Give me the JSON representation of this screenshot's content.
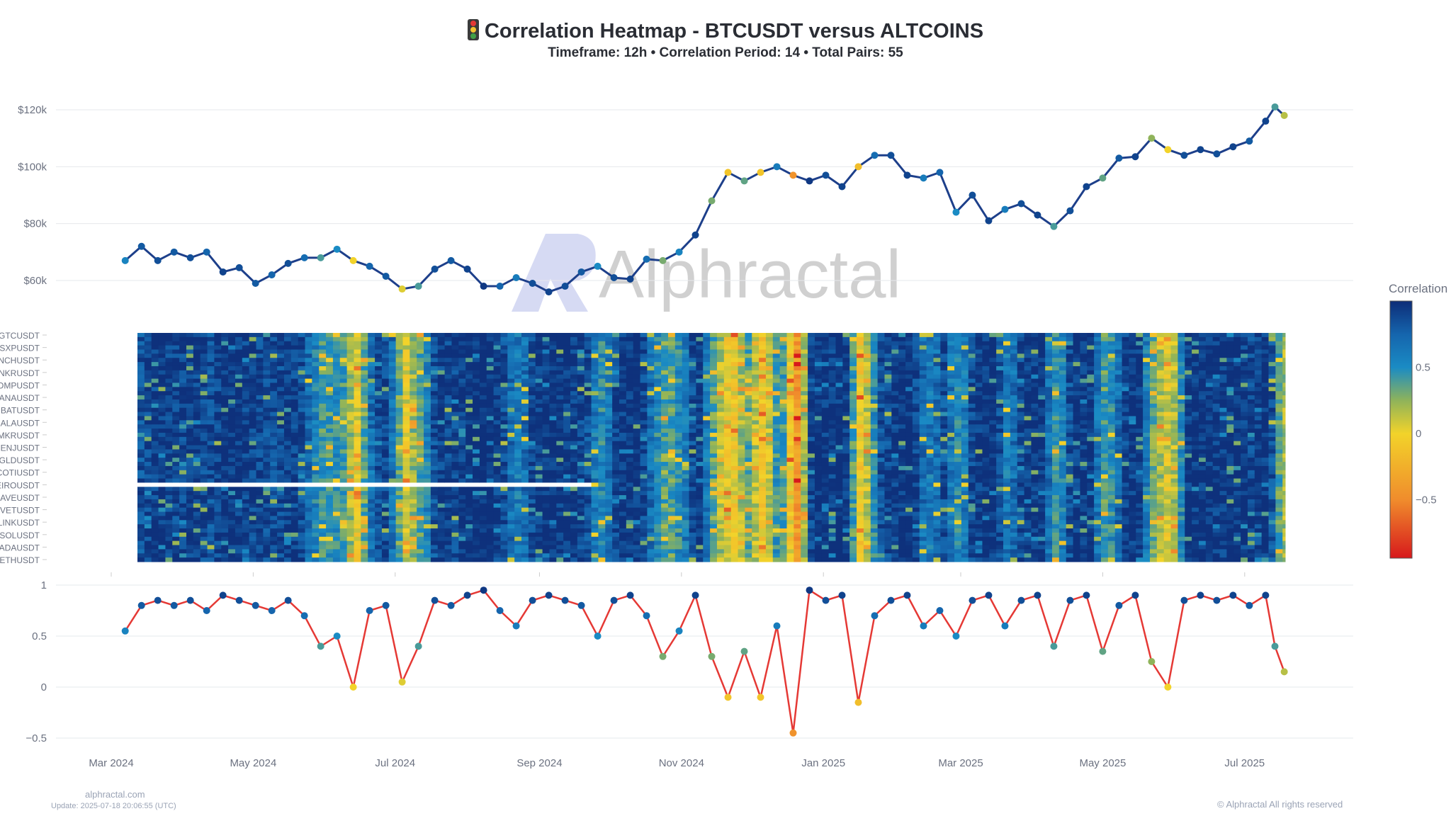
{
  "header": {
    "title": "Correlation Heatmap - BTCUSDT versus ALTCOINS",
    "title_icon": "traffic-light-icon",
    "subtitle": "Timeframe: 12h • Correlation Period: 14  • Total Pairs: 55"
  },
  "watermark": "Alphractal",
  "footer": {
    "site": "alphractal.com",
    "update": "Update: 2025-07-18 20:06:55 (UTC)",
    "copyright": "© Alphractal All rights reserved"
  },
  "chart_data": [
    {
      "type": "line",
      "ylabel": "",
      "yticks": [
        "$60k",
        "$80k",
        "$100k",
        "$120k"
      ],
      "ytick_values": [
        60000,
        80000,
        100000,
        120000
      ],
      "marker_color": "correlation",
      "grid": true
    },
    {
      "type": "heatmap",
      "row_labels": [
        "GTCUSDT",
        "SXPUSDT",
        "INCHUSDT",
        "ANKRUSDT",
        "COMPUSDT",
        "MANAUSDT",
        "BATUSDT",
        "GALAUSDT",
        "MKRUSDT",
        "ENJUSDT",
        "EGLDUSDT",
        "COTIUSDT",
        "NEIROUSDT",
        "AAVEUSDT",
        "VETUSDT",
        "LINKUSDT",
        "SOLUSDT",
        "ADAUSDT",
        "ETHUSDT"
      ],
      "total_rows": 55,
      "missing": {
        "row": "NEIROUSDT",
        "until": "2024-09-22"
      },
      "colorbar": {
        "title": "Correlation",
        "ticks": [
          "0.5",
          "0",
          "−0.5"
        ],
        "tick_values": [
          0.5,
          0,
          -0.5
        ],
        "range": [
          -0.94,
          1
        ],
        "colorscale": [
          [
            -0.94,
            "#d7191c"
          ],
          [
            -0.5,
            "#f08c2c"
          ],
          [
            0,
            "#f2d32a"
          ],
          [
            0.25,
            "#8fb35a"
          ],
          [
            0.5,
            "#1a8bc4"
          ],
          [
            0.75,
            "#1565ad"
          ],
          [
            1,
            "#0d2d78"
          ]
        ]
      }
    },
    {
      "type": "line",
      "yticks": [
        "1",
        "0.5",
        "0",
        "−0.5"
      ],
      "ytick_values": [
        1,
        0.5,
        0,
        -0.5
      ],
      "line_color": "#e53935",
      "grid": true
    }
  ],
  "xaxis": {
    "ticks": [
      "Mar 2024",
      "May 2024",
      "Jul 2024",
      "Sep 2024",
      "Nov 2024",
      "Jan 2025",
      "Mar 2025",
      "May 2025",
      "Jul 2025"
    ],
    "tick_dates": [
      "2024-03-01",
      "2024-05-01",
      "2024-07-01",
      "2024-09-01",
      "2024-11-01",
      "2025-01-01",
      "2025-03-01",
      "2025-05-01",
      "2025-07-01"
    ]
  },
  "series": [
    [
      "2024-03-07",
      67000,
      0.55
    ],
    [
      "2024-03-14",
      72000,
      0.8
    ],
    [
      "2024-03-21",
      67000,
      0.85
    ],
    [
      "2024-03-28",
      70000,
      0.8
    ],
    [
      "2024-04-04",
      68000,
      0.85
    ],
    [
      "2024-04-11",
      70000,
      0.75
    ],
    [
      "2024-04-18",
      63000,
      0.9
    ],
    [
      "2024-04-25",
      64500,
      0.85
    ],
    [
      "2024-05-02",
      59000,
      0.8
    ],
    [
      "2024-05-09",
      62000,
      0.75
    ],
    [
      "2024-05-16",
      66000,
      0.85
    ],
    [
      "2024-05-23",
      68000,
      0.7
    ],
    [
      "2024-05-30",
      68000,
      0.4
    ],
    [
      "2024-06-06",
      71000,
      0.5
    ],
    [
      "2024-06-13",
      67000,
      0.0
    ],
    [
      "2024-06-20",
      65000,
      0.75
    ],
    [
      "2024-06-27",
      61500,
      0.8
    ],
    [
      "2024-07-04",
      57000,
      0.05
    ],
    [
      "2024-07-11",
      58000,
      0.4
    ],
    [
      "2024-07-18",
      64000,
      0.85
    ],
    [
      "2024-07-25",
      67000,
      0.8
    ],
    [
      "2024-08-01",
      64000,
      0.9
    ],
    [
      "2024-08-08",
      58000,
      0.95
    ],
    [
      "2024-08-15",
      58000,
      0.75
    ],
    [
      "2024-08-22",
      61000,
      0.6
    ],
    [
      "2024-08-29",
      59000,
      0.85
    ],
    [
      "2024-09-05",
      56000,
      0.9
    ],
    [
      "2024-09-12",
      58000,
      0.85
    ],
    [
      "2024-09-19",
      63000,
      0.8
    ],
    [
      "2024-09-26",
      65000,
      0.5
    ],
    [
      "2024-10-03",
      61000,
      0.85
    ],
    [
      "2024-10-10",
      60500,
      0.9
    ],
    [
      "2024-10-17",
      67500,
      0.7
    ],
    [
      "2024-10-24",
      67000,
      0.3
    ],
    [
      "2024-10-31",
      70000,
      0.55
    ],
    [
      "2024-11-07",
      76000,
      0.9
    ],
    [
      "2024-11-14",
      88000,
      0.3
    ],
    [
      "2024-11-21",
      98000,
      -0.1
    ],
    [
      "2024-11-28",
      95000,
      0.35
    ],
    [
      "2024-12-05",
      98000,
      -0.1
    ],
    [
      "2024-12-12",
      100000,
      0.6
    ],
    [
      "2024-12-19",
      97000,
      -0.45
    ],
    [
      "2024-12-26",
      95000,
      0.95
    ],
    [
      "2025-01-02",
      97000,
      0.85
    ],
    [
      "2025-01-09",
      93000,
      0.9
    ],
    [
      "2025-01-16",
      100000,
      -0.15
    ],
    [
      "2025-01-23",
      104000,
      0.7
    ],
    [
      "2025-01-30",
      104000,
      0.85
    ],
    [
      "2025-02-06",
      97000,
      0.9
    ],
    [
      "2025-02-13",
      96000,
      0.6
    ],
    [
      "2025-02-20",
      98000,
      0.75
    ],
    [
      "2025-02-27",
      84000,
      0.5
    ],
    [
      "2025-03-06",
      90000,
      0.85
    ],
    [
      "2025-03-13",
      81000,
      0.9
    ],
    [
      "2025-03-20",
      85000,
      0.6
    ],
    [
      "2025-03-27",
      87000,
      0.85
    ],
    [
      "2025-04-03",
      83000,
      0.9
    ],
    [
      "2025-04-10",
      79000,
      0.4
    ],
    [
      "2025-04-17",
      84500,
      0.85
    ],
    [
      "2025-04-24",
      93000,
      0.9
    ],
    [
      "2025-05-01",
      96000,
      0.35
    ],
    [
      "2025-05-08",
      103000,
      0.8
    ],
    [
      "2025-05-15",
      103500,
      0.9
    ],
    [
      "2025-05-22",
      110000,
      0.25
    ],
    [
      "2025-05-29",
      106000,
      0.0
    ],
    [
      "2025-06-05",
      104000,
      0.85
    ],
    [
      "2025-06-12",
      106000,
      0.9
    ],
    [
      "2025-06-19",
      104500,
      0.85
    ],
    [
      "2025-06-26",
      107000,
      0.9
    ],
    [
      "2025-07-03",
      109000,
      0.8
    ],
    [
      "2025-07-10",
      116000,
      0.9
    ],
    [
      "2025-07-14",
      121000,
      0.4
    ],
    [
      "2025-07-18",
      118000,
      0.15
    ]
  ]
}
